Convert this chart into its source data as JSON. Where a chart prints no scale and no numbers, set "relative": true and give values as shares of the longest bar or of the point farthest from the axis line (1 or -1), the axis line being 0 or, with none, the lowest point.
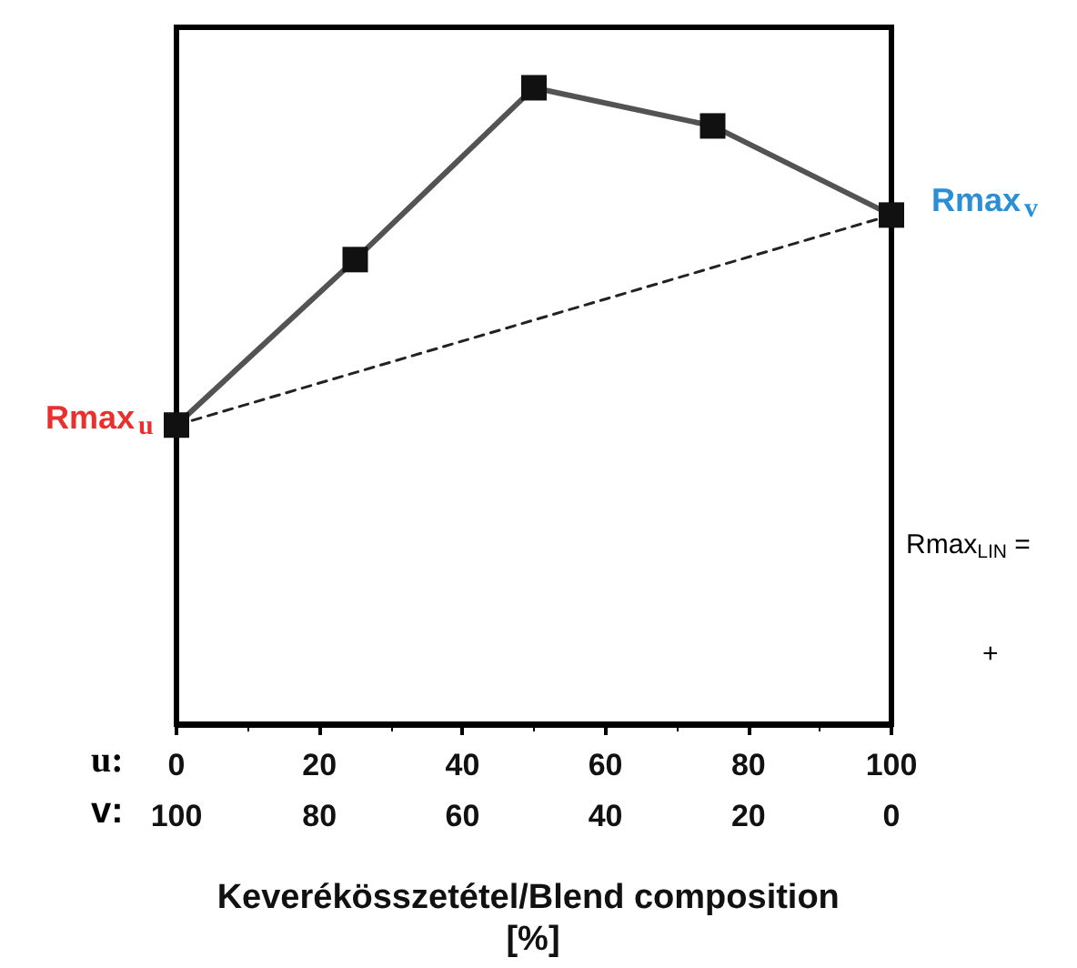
{
  "chart_data": {
    "type": "line",
    "relative": true,
    "xlabel": "Keverékösszetétel/Blend composition [%]",
    "x": [
      0,
      25,
      50,
      75,
      100
    ],
    "series": [
      {
        "color": "#111111",
        "values": [
          0.47,
          0.73,
          1,
          0.94,
          0.8
        ],
        "marker": "square",
        "line_style": "solid"
      },
      {
        "type": "line",
        "x": [
          0,
          100
        ],
        "color": "#222222",
        "values": [
          0.47,
          0.8
        ],
        "marker": "none",
        "line_style": "dashed"
      }
    ],
    "xlim": [
      0,
      100
    ],
    "xticks": [
      0,
      20,
      40,
      60,
      80,
      100
    ],
    "x2lim": [
      100,
      0
    ],
    "x2ticks": [
      100,
      80,
      60,
      40,
      20,
      0
    ],
    "tick_labels": "x",
    "grid": false,
    "annotations": [
      {
        "text": "Rmax$_{u}$",
        "x": 0,
        "y": 0.47
      },
      {
        "text": "Rmax$_{v}$",
        "x": 100,
        "y": 0.8
      },
      "Rmax$_{LIN}$ =",
      "+",
      "u:",
      "v:"
    ]
  }
}
